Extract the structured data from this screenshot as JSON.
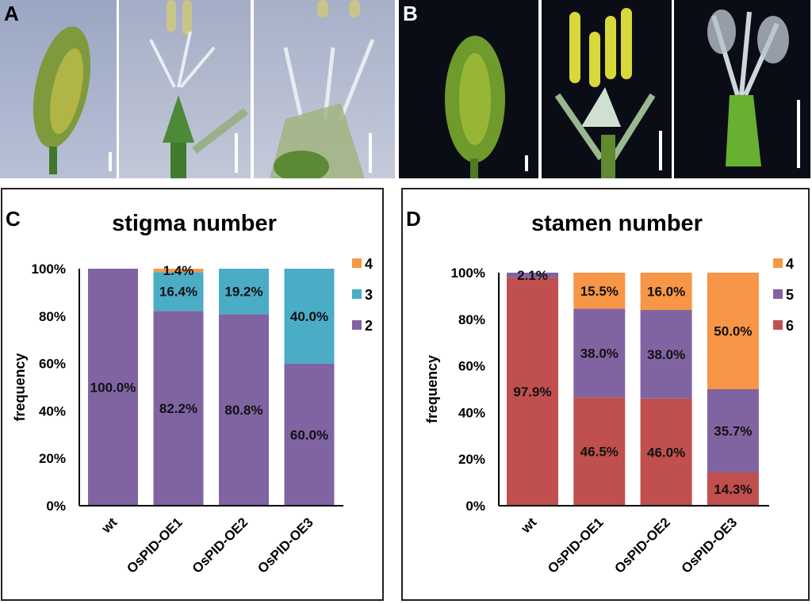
{
  "panels": {
    "a": "A",
    "b": "B",
    "c": "C",
    "d": "D"
  },
  "colors": {
    "two": "#8064a2",
    "three": "#4bacc6",
    "four": "#f79646",
    "five": "#8064a2",
    "six": "#c0504d"
  },
  "chart_data": [
    {
      "type": "bar",
      "stacked": true,
      "title": "stigma number",
      "ylabel": "frequency",
      "xlabel": "",
      "ylim": [
        0,
        100
      ],
      "yticks": [
        "0%",
        "20%",
        "40%",
        "60%",
        "80%",
        "100%"
      ],
      "categories": [
        "wt",
        "OsPID-OE1",
        "OsPID-OE2",
        "OsPID-OE3"
      ],
      "legend_position": "top-right",
      "series": [
        {
          "name": "2",
          "color": "#8064a2",
          "values": [
            100.0,
            82.2,
            80.8,
            60.0
          ],
          "labels": [
            "100.0%",
            "82.2%",
            "80.8%",
            "60.0%"
          ]
        },
        {
          "name": "3",
          "color": "#4bacc6",
          "values": [
            0,
            16.4,
            19.2,
            40.0
          ],
          "labels": [
            "",
            "16.4%",
            "19.2%",
            "40.0%"
          ]
        },
        {
          "name": "4",
          "color": "#f79646",
          "values": [
            0,
            1.4,
            0,
            0
          ],
          "labels": [
            "",
            "1.4%",
            "",
            ""
          ]
        }
      ],
      "legend_order": [
        "4",
        "3",
        "2"
      ]
    },
    {
      "type": "bar",
      "stacked": true,
      "title": "stamen number",
      "ylabel": "frequency",
      "xlabel": "",
      "ylim": [
        0,
        100
      ],
      "yticks": [
        "0%",
        "20%",
        "40%",
        "60%",
        "80%",
        "100%"
      ],
      "categories": [
        "wt",
        "OsPID-OE1",
        "OsPID-OE2",
        "OsPID-OE3"
      ],
      "legend_position": "top-right",
      "series": [
        {
          "name": "6",
          "color": "#c0504d",
          "values": [
            97.9,
            46.5,
            46.0,
            14.3
          ],
          "labels": [
            "97.9%",
            "46.5%",
            "46.0%",
            "14.3%"
          ]
        },
        {
          "name": "5",
          "color": "#8064a2",
          "values": [
            2.1,
            38.0,
            38.0,
            35.7
          ],
          "labels": [
            "2.1%",
            "38.0%",
            "38.0%",
            "35.7%"
          ]
        },
        {
          "name": "4",
          "color": "#f79646",
          "values": [
            0,
            15.5,
            16.0,
            50.0
          ],
          "labels": [
            "",
            "15.5%",
            "16.0%",
            "50.0%"
          ]
        }
      ],
      "legend_order": [
        "4",
        "5",
        "6"
      ]
    }
  ]
}
